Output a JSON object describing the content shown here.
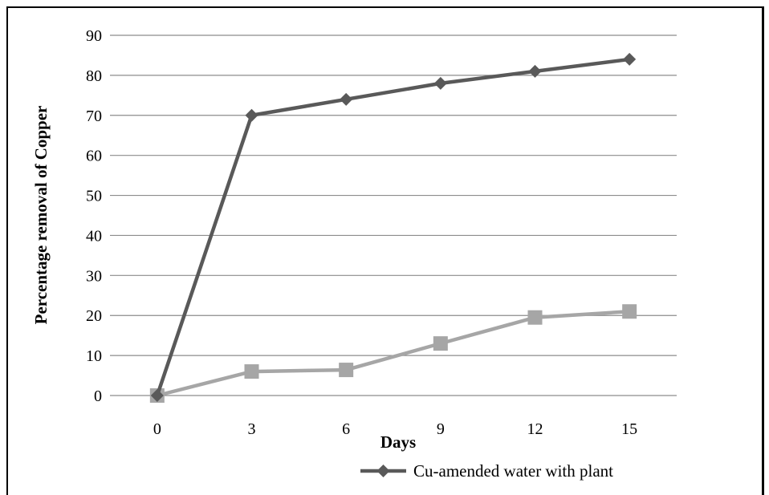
{
  "chart_data": {
    "type": "line",
    "xlabel": "Days",
    "ylabel": "Percentage removal of Copper",
    "categories": [
      "0",
      "3",
      "6",
      "9",
      "12",
      "15"
    ],
    "ylim": [
      0,
      90
    ],
    "yticks": [
      "0",
      "10",
      "20",
      "30",
      "40",
      "50",
      "60",
      "70",
      "80",
      "90"
    ],
    "grid": "horizontal",
    "legend_position": "bottom",
    "series": [
      {
        "name": "Cu-amended water with plant",
        "values": [
          0,
          70,
          74,
          78,
          81,
          84
        ],
        "color": "#595959",
        "marker": "diamond"
      },
      {
        "name": "",
        "values": [
          0,
          6,
          6.4,
          13,
          19.5,
          21
        ],
        "color": "#a6a6a6",
        "marker": "square"
      }
    ]
  }
}
